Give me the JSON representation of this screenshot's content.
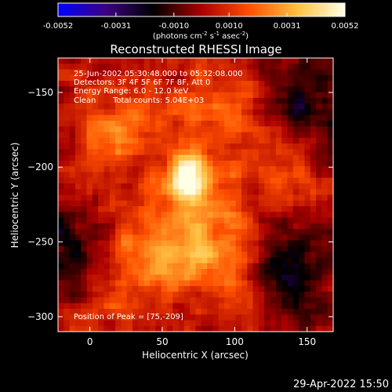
{
  "chart_data": {
    "type": "heatmap",
    "title": "Reconstructed RHESSI Image",
    "xlabel": "Heliocentric X (arcsec)",
    "ylabel": "Heliocentric Y (arcsec)",
    "xlim": [
      -22,
      168
    ],
    "ylim": [
      -310,
      -127
    ],
    "x_ticks": [
      0,
      50,
      100,
      150
    ],
    "y_ticks": [
      -150,
      -200,
      -250,
      -300
    ],
    "colorbar": {
      "min": -0.0052,
      "max": 0.0052,
      "ticks": [
        "-0.0052",
        "-0.0031",
        "-0.0010",
        "0.0010",
        "0.0031",
        "0.0052"
      ],
      "units_main": "(photons cm",
      "units_sup1": "-2",
      "units_mid": " s",
      "units_sup2": "-1",
      "units_mid2": " asec",
      "units_sup3": "-2",
      "units_end": ")",
      "colors": [
        "#0000ff",
        "#3c0082",
        "#000000",
        "#aa0000",
        "#ff5000",
        "#ffc040",
        "#ffffe6"
      ]
    },
    "annotations": {
      "time_range": "25-Jun-2002 05:30:48.000 to 05:32:08.000",
      "detectors": "Detectors: 3F 4F 5F 6F 7F 8F, Att 0",
      "energy_range": "Energy Range: 6.0 - 12.0 keV",
      "method": "Clean",
      "total_counts": "Total counts: 5.04E+03",
      "peak": "Position of Peak = [75,-209]"
    },
    "sources": [
      {
        "x": 68,
        "y": -208,
        "amp": 1.0
      },
      {
        "x": 20,
        "y": -175,
        "amp": 0.42
      },
      {
        "x": 40,
        "y": -260,
        "amp": 0.45
      },
      {
        "x": 90,
        "y": -165,
        "amp": 0.35
      },
      {
        "x": 110,
        "y": -280,
        "amp": 0.35
      },
      {
        "x": 140,
        "y": -200,
        "amp": 0.3
      },
      {
        "x": 0,
        "y": -290,
        "amp": 0.3
      },
      {
        "x": 80,
        "y": -245,
        "amp": 0.5
      }
    ],
    "negative_regions": [
      {
        "x": -15,
        "y": -265,
        "amp": -0.5
      },
      {
        "x": 135,
        "y": -270,
        "amp": -0.55
      },
      {
        "x": 150,
        "y": -160,
        "amp": -0.35
      }
    ]
  },
  "footer": {
    "timestamp": "29-Apr-2022 15:50"
  }
}
